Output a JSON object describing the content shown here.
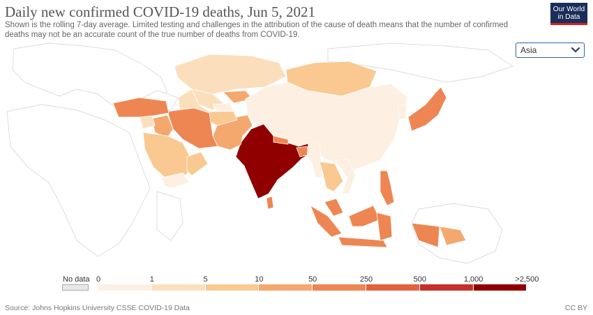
{
  "header": {
    "title": "Daily new confirmed COVID-19 deaths, Jun 5, 2021",
    "subtitle": "Shown is the rolling 7-day average. Limited testing and challenges in the attribution of the cause of death means that the number of confirmed deaths may not be an accurate count of the true number of deaths from COVID-19.",
    "logo_line1": "Our World",
    "logo_line2": "in Data"
  },
  "region_select": {
    "value": "Asia",
    "icon": "chevron-down-icon"
  },
  "legend": {
    "no_data_label": "No data",
    "no_data_color": "#e8e8e8",
    "ticks": [
      "0",
      "1",
      "5",
      "10",
      "50",
      "250",
      "500",
      "1,000",
      ">2,500"
    ],
    "colors": [
      "#fdf0e2",
      "#fbdfbd",
      "#f9c991",
      "#f5a86e",
      "#ee8653",
      "#e2623f",
      "#c7302a",
      "#910000"
    ]
  },
  "map": {
    "countries": [
      {
        "name": "Kazakhstan",
        "bin": 1
      },
      {
        "name": "Uzbekistan",
        "bin": 1
      },
      {
        "name": "Turkmenistan",
        "bin": 1
      },
      {
        "name": "Kyrgyzstan",
        "bin": 3
      },
      {
        "name": "Tajikistan",
        "bin": 0
      },
      {
        "name": "Mongolia",
        "bin": 2
      },
      {
        "name": "China",
        "bin": 0
      },
      {
        "name": "India",
        "bin": 7
      },
      {
        "name": "Pakistan",
        "bin": 3
      },
      {
        "name": "Afghanistan",
        "bin": 2
      },
      {
        "name": "Iran",
        "bin": 4
      },
      {
        "name": "Iraq",
        "bin": 3
      },
      {
        "name": "Saudi Arabia",
        "bin": 2
      },
      {
        "name": "Turkey",
        "bin": 4
      },
      {
        "name": "Syria",
        "bin": 1
      },
      {
        "name": "Yemen",
        "bin": 0
      },
      {
        "name": "Oman",
        "bin": 2
      },
      {
        "name": "Japan",
        "bin": 4
      },
      {
        "name": "South Korea",
        "bin": 0
      },
      {
        "name": "Nepal",
        "bin": 4
      },
      {
        "name": "Bangladesh",
        "bin": 4
      },
      {
        "name": "Myanmar",
        "bin": 0
      },
      {
        "name": "Thailand",
        "bin": 2
      },
      {
        "name": "Vietnam",
        "bin": 0
      },
      {
        "name": "Sri Lanka",
        "bin": 4
      },
      {
        "name": "Malaysia",
        "bin": 4
      },
      {
        "name": "Indonesia",
        "bin": 4
      },
      {
        "name": "Philippines",
        "bin": 4
      },
      {
        "name": "Papua New Guinea",
        "bin": 3
      }
    ]
  },
  "footer": {
    "source": "Source: Johns Hopkins University CSSE COVID-19 Data",
    "license": "CC BY"
  }
}
